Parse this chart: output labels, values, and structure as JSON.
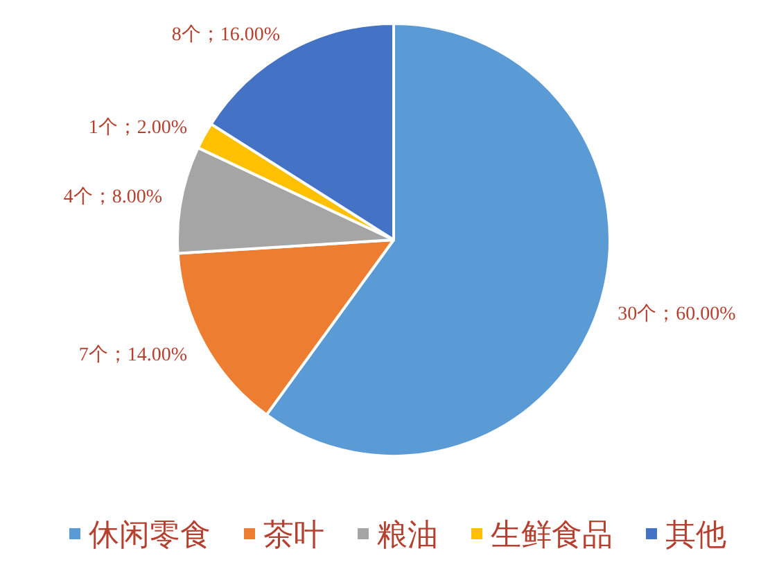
{
  "chart_data": {
    "type": "pie",
    "categories": [
      "休闲零食",
      "茶叶",
      "粮油",
      "生鲜食品",
      "其他"
    ],
    "values": [
      60,
      14,
      8,
      2,
      16
    ],
    "colors": [
      "#5b9bd5",
      "#ed7d31",
      "#a5a5a5",
      "#ffc000",
      "#4472c4"
    ],
    "value_labels": [
      "30个；60.00%",
      "7个；14.00%",
      "4个；8.00%",
      "1个；2.00%",
      "8个；16.00%"
    ],
    "legend": "bottom"
  }
}
